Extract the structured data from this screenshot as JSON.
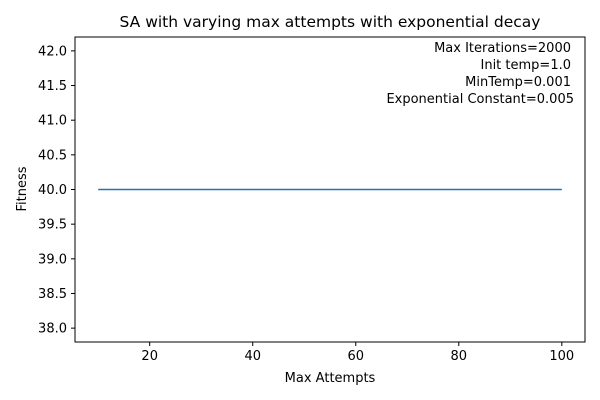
{
  "chart_data": {
    "type": "line",
    "title": "SA with varying max attempts with exponential decay",
    "xlabel": "Max Attempts",
    "ylabel": "Fitness",
    "xlim": [
      5.5,
      104.5
    ],
    "ylim": [
      37.8,
      42.2
    ],
    "x_ticks": [
      20,
      40,
      60,
      80,
      100
    ],
    "y_ticks": [
      38.0,
      38.5,
      39.0,
      39.5,
      40.0,
      40.5,
      41.0,
      41.5,
      42.0
    ],
    "x_tick_labels": [
      "20",
      "40",
      "60",
      "80",
      "100"
    ],
    "y_tick_labels": [
      "38.0",
      "38.5",
      "39.0",
      "39.5",
      "40.0",
      "40.5",
      "41.0",
      "41.5",
      "42.0"
    ],
    "grid": false,
    "legend": "none",
    "series": [
      {
        "color": "#1f77b4",
        "x": [
          10,
          20,
          30,
          40,
          50,
          60,
          70,
          80,
          90,
          100
        ],
        "y": [
          40,
          40,
          40,
          40,
          40,
          40,
          40,
          40,
          40,
          40
        ]
      }
    ],
    "annotations": [
      "Max Iterations=2000",
      "Init temp=1.0",
      "MinTemp=0.001",
      "Exponential Constant=0.005"
    ]
  }
}
